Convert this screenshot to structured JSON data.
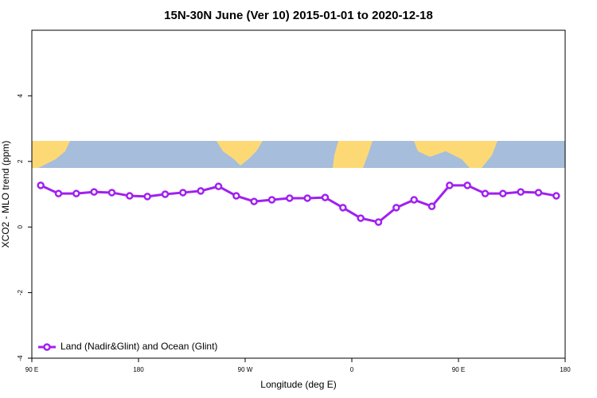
{
  "chart_data": {
    "type": "line",
    "title": "15N-30N June (Ver 10)   2015-01-01 to 2020-12-18",
    "x_label": "Longitude (deg E)",
    "y_label": "XCO2 - MLO trend (ppm)",
    "x": [
      97.5,
      112.5,
      127.5,
      142.5,
      157.5,
      172.5,
      187.5,
      202.5,
      217.5,
      232.5,
      247.5,
      262.5,
      277.5,
      292.5,
      307.5,
      322.5,
      337.5,
      352.5,
      367.5,
      382.5,
      397.5,
      412.5,
      427.5,
      442.5,
      457.5,
      472.5,
      487.5,
      502.5,
      517.5,
      532.5
    ],
    "series": [
      {
        "name": "Land (Nadir&Glint) and Ocean (Glint)",
        "color": "#a020f0",
        "values": [
          1.27,
          1.02,
          1.02,
          1.07,
          1.05,
          0.95,
          0.93,
          1.0,
          1.05,
          1.1,
          1.24,
          0.95,
          0.78,
          0.83,
          0.88,
          0.88,
          0.9,
          0.59,
          0.27,
          0.15,
          0.59,
          0.83,
          0.63,
          1.27,
          1.27,
          1.02,
          1.02,
          1.07,
          1.05,
          0.95
        ]
      }
    ],
    "xlim": [
      90,
      540
    ],
    "xticks": [
      {
        "value": 90,
        "label": "90 E"
      },
      180,
      {
        "value": 270,
        "label": "90 W"
      },
      {
        "value": 360,
        "label": "0"
      },
      {
        "value": 450,
        "label": "90 E"
      },
      {
        "value": 540,
        "label": "180"
      }
    ],
    "ylim": [
      -4,
      6
    ],
    "yticks": [
      -4,
      -2,
      0,
      2,
      4
    ],
    "grid": false,
    "legend": "bottom-left"
  }
}
